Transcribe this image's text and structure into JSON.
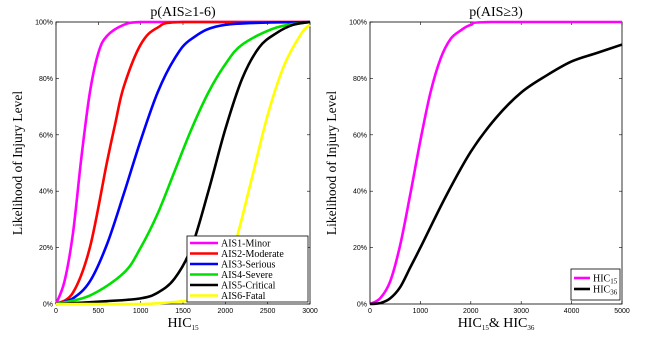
{
  "chart_data": [
    {
      "type": "line",
      "title": "p(AIS≥1-6)",
      "xlabel": "HIC",
      "xlabel_sub": "15",
      "ylabel": "Likelihood of Injury Level",
      "xlim": [
        0,
        3000
      ],
      "ylim": [
        0,
        100
      ],
      "xticks": [
        "0",
        "500",
        "1000",
        "1500",
        "2000",
        "2500",
        "3000"
      ],
      "yticks": [
        "0%",
        "20%",
        "40%",
        "60%",
        "80%",
        "100%"
      ],
      "legend_position": "bottom-right",
      "series": [
        {
          "name": "AIS1-Minor",
          "color": "#ff00ff",
          "x": [
            0,
            100,
            200,
            300,
            400,
            500,
            600,
            800,
            1000,
            1500,
            3000
          ],
          "y": [
            0,
            8,
            25,
            52,
            75,
            89,
            95,
            99,
            100,
            100,
            100
          ]
        },
        {
          "name": "AIS2-Moderate",
          "color": "#ff0000",
          "x": [
            0,
            200,
            400,
            600,
            700,
            800,
            1000,
            1200,
            1500,
            3000
          ],
          "y": [
            0,
            4,
            20,
            50,
            64,
            77,
            92,
            98,
            100,
            100
          ]
        },
        {
          "name": "AIS3-Serious",
          "color": "#0000ff",
          "x": [
            0,
            200,
            400,
            600,
            800,
            1000,
            1200,
            1400,
            1600,
            2000,
            3000
          ],
          "y": [
            0,
            2,
            8,
            21,
            39,
            58,
            75,
            87,
            94,
            99,
            100
          ]
        },
        {
          "name": "AIS4-Severe",
          "color": "#00e000",
          "x": [
            0,
            400,
            800,
            1000,
            1200,
            1400,
            1600,
            1800,
            2000,
            2200,
            2600,
            3000
          ],
          "y": [
            0,
            3,
            11,
            20,
            32,
            47,
            62,
            75,
            85,
            92,
            98,
            100
          ]
        },
        {
          "name": "AIS5-Critical",
          "color": "#000000",
          "x": [
            0,
            600,
            1000,
            1200,
            1400,
            1600,
            1800,
            2000,
            2200,
            2400,
            2600,
            2800,
            3000
          ],
          "y": [
            0,
            1,
            2,
            4,
            9,
            20,
            40,
            62,
            80,
            91,
            96,
            99,
            100
          ]
        },
        {
          "name": "AIS6-Fatal",
          "color": "#ffff00",
          "x": [
            0,
            1000,
            1500,
            1700,
            1900,
            2100,
            2300,
            2500,
            2700,
            2900,
            3000
          ],
          "y": [
            0,
            0,
            1,
            2,
            7,
            20,
            43,
            67,
            85,
            96,
            99
          ]
        }
      ]
    },
    {
      "type": "line",
      "title": "p(AIS≥3)",
      "xlabel": "HIC",
      "xlabel_sub": "15",
      "xlabel_mid": "& HIC",
      "xlabel_sub2": "36",
      "ylabel": "Likelihood of Injury Level",
      "xlim": [
        0,
        5000
      ],
      "ylim": [
        0,
        100
      ],
      "xticks": [
        "0",
        "1000",
        "2000",
        "3000",
        "4000",
        "5000"
      ],
      "yticks": [
        "0%",
        "20%",
        "40%",
        "60%",
        "80%",
        "100%"
      ],
      "legend_position": "bottom-right",
      "series": [
        {
          "name": "HIC",
          "sub": "15",
          "color": "#ff00ff",
          "x": [
            0,
            200,
            400,
            600,
            800,
            1000,
            1200,
            1400,
            1600,
            1800,
            2000,
            2400,
            5000
          ],
          "y": [
            0,
            2,
            8,
            21,
            39,
            58,
            75,
            87,
            94,
            97,
            99,
            100,
            100
          ]
        },
        {
          "name": "HIC",
          "sub": "36",
          "color": "#000000",
          "x": [
            0,
            200,
            400,
            600,
            800,
            1000,
            1500,
            2000,
            2500,
            3000,
            3500,
            4000,
            4500,
            5000
          ],
          "y": [
            0,
            0.3,
            2,
            6,
            13,
            20,
            38,
            54,
            66,
            75,
            81,
            86,
            89,
            92
          ]
        }
      ]
    }
  ]
}
